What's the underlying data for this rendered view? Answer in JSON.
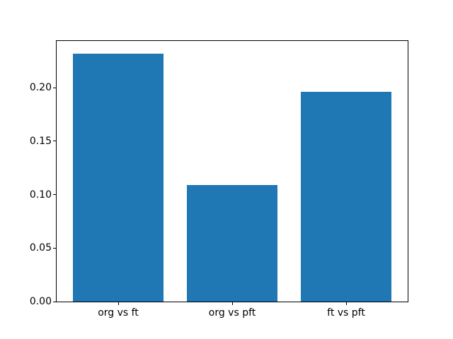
{
  "chart_data": {
    "type": "bar",
    "title": "",
    "xlabel": "",
    "ylabel": "",
    "categories": [
      "org vs ft",
      "org vs pft",
      "ft vs pft"
    ],
    "values": [
      0.232,
      0.109,
      0.196
    ],
    "bar_color": "#1f77b4",
    "bar_width": 0.8,
    "xlim": [
      -0.54,
      2.54
    ],
    "ylim": [
      0,
      0.2436
    ],
    "grid": false,
    "legend_position": "none",
    "yticks": {
      "values": [
        0,
        0.05,
        0.1,
        0.15,
        0.2
      ],
      "labels": [
        "0.00",
        "0.05",
        "0.10",
        "0.15",
        "0.20"
      ]
    }
  }
}
